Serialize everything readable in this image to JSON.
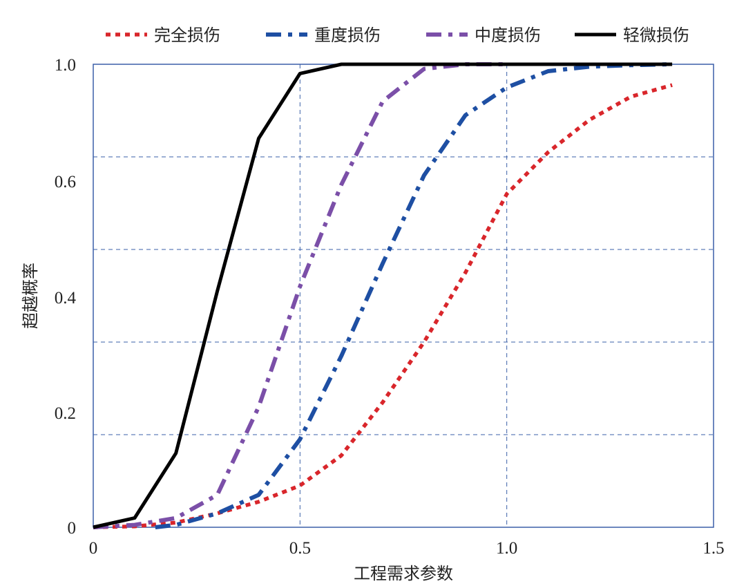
{
  "chart_data": {
    "type": "line",
    "xlabel": "工程需求参数",
    "ylabel": "超越概率",
    "xlim": [
      0,
      1.5
    ],
    "ylim": [
      0,
      1.0
    ],
    "x_ticks": [
      "0",
      "0.5",
      "1.0",
      "1.5"
    ],
    "y_ticks": [
      "0",
      "0.2",
      "0.4",
      "0.6",
      "1.0"
    ],
    "grid": true,
    "legend_position": "top",
    "series": [
      {
        "name": "完全损伤",
        "color": "#d9262b",
        "style": "dotted",
        "x": [
          0,
          0.1,
          0.2,
          0.3,
          0.4,
          0.5,
          0.6,
          0.7,
          0.8,
          0.9,
          1.0,
          1.1,
          1.2,
          1.3,
          1.4
        ],
        "y": [
          0,
          0.002,
          0.01,
          0.03,
          0.055,
          0.09,
          0.155,
          0.27,
          0.4,
          0.55,
          0.72,
          0.81,
          0.88,
          0.93,
          0.955
        ]
      },
      {
        "name": "重度损伤",
        "color": "#1e4fa3",
        "style": "dash-dot",
        "x": [
          0.15,
          0.2,
          0.3,
          0.4,
          0.5,
          0.6,
          0.7,
          0.8,
          0.9,
          1.0,
          1.1,
          1.2,
          1.3,
          1.4
        ],
        "y": [
          0,
          0.005,
          0.03,
          0.07,
          0.19,
          0.37,
          0.57,
          0.76,
          0.89,
          0.95,
          0.985,
          0.995,
          0.998,
          1.0
        ]
      },
      {
        "name": "中度损伤",
        "color": "#7b4fa8",
        "style": "dash-dot",
        "x": [
          0,
          0.1,
          0.2,
          0.3,
          0.4,
          0.5,
          0.6,
          0.7,
          0.8,
          0.9,
          1.0
        ],
        "y": [
          0,
          0.005,
          0.02,
          0.07,
          0.26,
          0.52,
          0.74,
          0.92,
          0.99,
          1.0,
          1.0
        ]
      },
      {
        "name": "轻微损伤",
        "color": "#000000",
        "style": "solid",
        "x": [
          0,
          0.1,
          0.2,
          0.3,
          0.4,
          0.5,
          0.6,
          0.7,
          1.0,
          1.4
        ],
        "y": [
          0,
          0.02,
          0.16,
          0.51,
          0.84,
          0.98,
          1.0,
          1.0,
          1.0,
          1.0
        ]
      }
    ]
  }
}
